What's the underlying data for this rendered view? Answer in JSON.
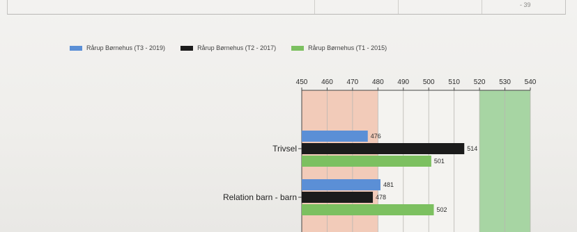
{
  "table": {
    "cell_text": "- 39"
  },
  "legend": [
    {
      "label": "Rårup Børnehus (T3 - 2019)",
      "color": "#5b8fd6"
    },
    {
      "label": "Rårup Børnehus (T2 - 2017)",
      "color": "#1b1b1b"
    },
    {
      "label": "Rårup Børnehus (T1 - 2015)",
      "color": "#7cc060"
    }
  ],
  "chart_data": {
    "type": "bar",
    "orientation": "horizontal",
    "xlim": [
      450,
      540
    ],
    "x_ticks": [
      450,
      460,
      470,
      480,
      490,
      500,
      510,
      520,
      530,
      540
    ],
    "reference_bands": [
      {
        "from": 450,
        "to": 480,
        "color": "#f2c6b3"
      },
      {
        "from": 520,
        "to": 540,
        "color": "#9fd19a"
      }
    ],
    "categories": [
      "Trivsel",
      "Relation barn - barn"
    ],
    "series": [
      {
        "name": "Rårup Børnehus (T3 - 2019)",
        "color": "#5b8fd6",
        "values": [
          476,
          481
        ]
      },
      {
        "name": "Rårup Børnehus (T2 - 2017)",
        "color": "#1b1b1b",
        "values": [
          514,
          478
        ]
      },
      {
        "name": "Rårup Børnehus (T1 - 2015)",
        "color": "#7cc060",
        "values": [
          501,
          502
        ]
      }
    ],
    "grid": true,
    "legend_position": "top"
  }
}
